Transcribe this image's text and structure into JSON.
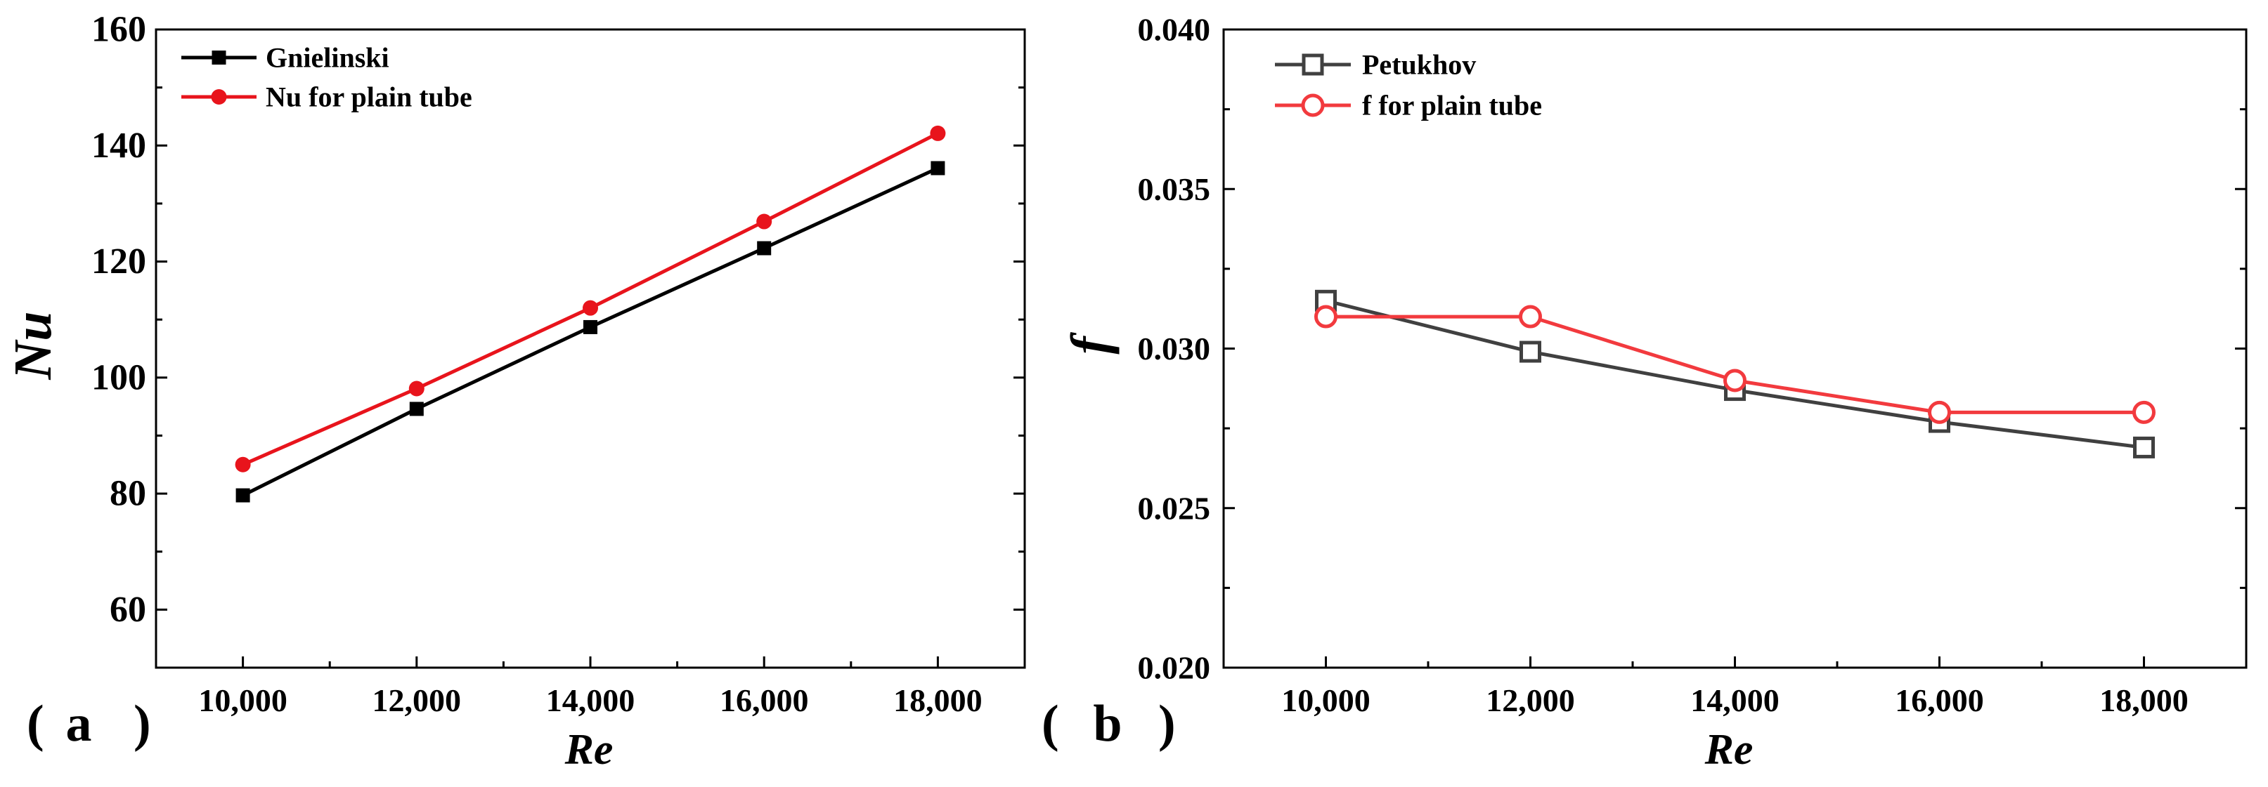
{
  "chart_data": [
    {
      "panel": "(a)",
      "panel_open": "(",
      "panel_letter": "a",
      "panel_close": ")",
      "type": "line",
      "xlabel": "Re",
      "ylabel": "Nu",
      "xlim": [
        9000,
        19000
      ],
      "ylim": [
        50,
        160
      ],
      "x": [
        10000,
        12000,
        14000,
        16000,
        18000
      ],
      "xticks": [
        10000,
        12000,
        14000,
        16000,
        18000
      ],
      "xtick_labels": [
        "10,000",
        "12,000",
        "14,000",
        "16,000",
        "18,000"
      ],
      "yticks": [
        60,
        80,
        100,
        120,
        140,
        160
      ],
      "ytick_labels": [
        "60",
        "80",
        "100",
        "120",
        "140",
        "160"
      ],
      "legend_position": "top-left",
      "series": [
        {
          "name": "Gnielinski",
          "color": "#000000",
          "marker": "square-filled",
          "values": [
            79.7,
            94.6,
            108.7,
            122.3,
            136.1
          ]
        },
        {
          "name": "Nu for plain tube",
          "color": "#e8141c",
          "marker": "circle-filled",
          "values": [
            85.0,
            98.1,
            112.0,
            126.9,
            142.1
          ]
        }
      ]
    },
    {
      "panel": "(b)",
      "panel_open": "(",
      "panel_letter": "b",
      "panel_close": ")",
      "type": "line",
      "xlabel": "Re",
      "ylabel": "f",
      "xlim": [
        9000,
        19000
      ],
      "ylim": [
        0.02,
        0.04
      ],
      "x": [
        10000,
        12000,
        14000,
        16000,
        18000
      ],
      "xticks": [
        10000,
        12000,
        14000,
        16000,
        18000
      ],
      "xtick_labels": [
        "10,000",
        "12,000",
        "14,000",
        "16,000",
        "18,000"
      ],
      "yticks": [
        0.02,
        0.025,
        0.03,
        0.035,
        0.04
      ],
      "ytick_labels": [
        "0.020",
        "0.025",
        "0.030",
        "0.035",
        "0.040"
      ],
      "legend_position": "top-left",
      "series": [
        {
          "name": "Petukhov",
          "color": "#404040",
          "marker": "square-open",
          "values": [
            0.0315,
            0.0299,
            0.0287,
            0.0277,
            0.0269
          ]
        },
        {
          "name": "f for plain tube",
          "color": "#f23a3e",
          "marker": "circle-open",
          "values": [
            0.031,
            0.031,
            0.029,
            0.028,
            0.028
          ]
        }
      ]
    }
  ]
}
